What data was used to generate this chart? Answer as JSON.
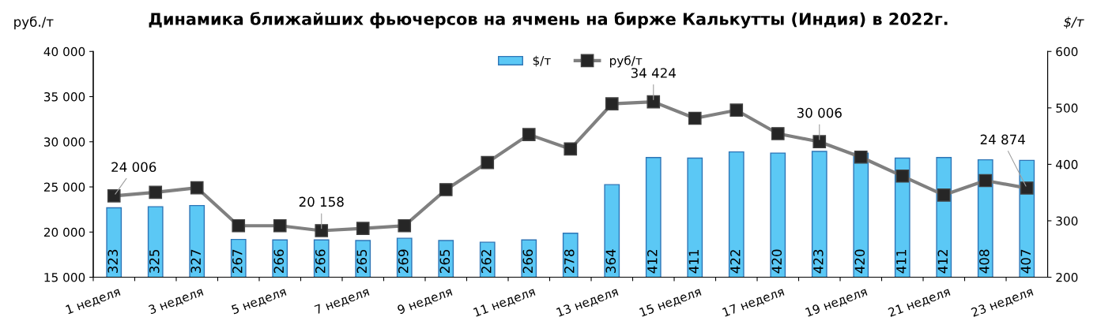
{
  "chart_data": {
    "type": "bar",
    "title": "Динамика ближайших фьючерсов на ячмень на бирже Калькутты (Индия) в 2022г.",
    "ylabel": "руб./т",
    "y2label": "$/т",
    "categories": [
      "1 неделя",
      null,
      "3 неделя",
      null,
      "5 неделя",
      null,
      "7 неделя",
      null,
      "9 неделя",
      null,
      "11 неделя",
      null,
      "13 неделя",
      null,
      "15 неделя",
      null,
      "17 неделя",
      null,
      "19 неделя",
      null,
      "21 неделя",
      null,
      "23 неделя"
    ],
    "series": [
      {
        "name": "$/т",
        "axis": "y2",
        "color": "#5bc8f5",
        "values": [
          323,
          325,
          327,
          267,
          266,
          266,
          265,
          269,
          265,
          262,
          266,
          278,
          364,
          412,
          411,
          422,
          420,
          423,
          420,
          411,
          412,
          408,
          407
        ],
        "value_labels": [
          "323",
          "325",
          "327",
          "267",
          "266",
          "266",
          "265",
          "269",
          "265",
          "262",
          "266",
          "278",
          "364",
          "412",
          "411",
          "422",
          "420",
          "423",
          "420",
          "411",
          "412",
          "408",
          "407"
        ]
      },
      {
        "name": "руб/т",
        "type": "line",
        "axis": "y",
        "color": "#808080",
        "marker": "square",
        "values": [
          24006,
          24400,
          24900,
          20700,
          20700,
          20158,
          20400,
          20700,
          24700,
          27700,
          30800,
          29200,
          34200,
          34424,
          32600,
          33500,
          30900,
          30006,
          28300,
          26200,
          24100,
          25700,
          24874
        ],
        "value_labels": [
          "24 006",
          null,
          null,
          null,
          null,
          "20 158",
          null,
          null,
          null,
          null,
          null,
          null,
          null,
          "34 424",
          null,
          null,
          null,
          "30 006",
          null,
          null,
          null,
          null,
          "24 874"
        ]
      }
    ],
    "ylim": [
      15000,
      40000
    ],
    "yticks": [
      {
        "value": 15000,
        "label": "15 000"
      },
      {
        "value": 20000,
        "label": "20 000"
      },
      {
        "value": 25000,
        "label": "25 000"
      },
      {
        "value": 30000,
        "label": "30 000"
      },
      {
        "value": 35000,
        "label": "35 000"
      },
      {
        "value": 40000,
        "label": "40 000"
      }
    ],
    "y2lim": [
      200,
      600
    ],
    "y2ticks": [
      200,
      300,
      400,
      500,
      600
    ],
    "grid": false,
    "legend": "top"
  }
}
